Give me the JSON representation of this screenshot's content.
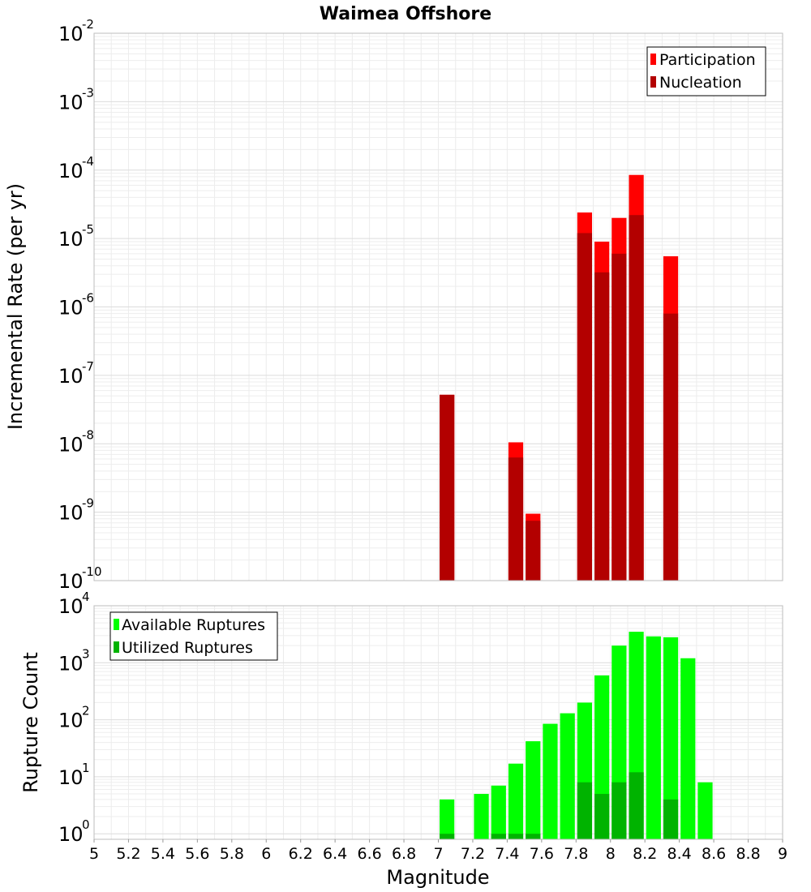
{
  "chart_data": {
    "type": "bar",
    "title": "Waimea Offshore",
    "xlabel": "Magnitude",
    "xlim": [
      5,
      9
    ],
    "x_ticks": [
      "5",
      "5.2",
      "5.4",
      "5.6",
      "5.8",
      "6",
      "6.2",
      "6.4",
      "6.6",
      "6.8",
      "7",
      "7.2",
      "7.4",
      "7.6",
      "7.8",
      "8",
      "8.2",
      "8.4",
      "8.6",
      "8.8",
      "9"
    ],
    "bin_width": 0.1,
    "panels": [
      {
        "name": "rate-panel",
        "ylabel": "Incremental Rate (per yr)",
        "yscale": "log",
        "ylim_exp": [
          -10,
          -2
        ],
        "y_tick_base": "10",
        "y_tick_exponents": [
          "-10",
          "-9",
          "-8",
          "-7",
          "-6",
          "-5",
          "-4",
          "-3",
          "-2"
        ],
        "legend_position": "top-right",
        "grid": true,
        "series": [
          {
            "name": "Participation",
            "color": "#ff0000",
            "x": [
              7.05,
              7.45,
              7.55,
              7.85,
              7.95,
              8.05,
              8.15,
              8.35
            ],
            "values": [
              5.2e-08,
              1.05e-08,
              9.5e-10,
              2.4e-05,
              9e-06,
              2e-05,
              8.5e-05,
              5.5e-06
            ]
          },
          {
            "name": "Nucleation",
            "color": "#b30000",
            "x": [
              7.05,
              7.45,
              7.55,
              7.85,
              7.95,
              8.05,
              8.15,
              8.35
            ],
            "values": [
              5.2e-08,
              6.3e-09,
              7.5e-10,
              1.2e-05,
              3.2e-06,
              6e-06,
              2.2e-05,
              8e-07
            ]
          }
        ]
      },
      {
        "name": "count-panel",
        "ylabel": "Rupture Count",
        "yscale": "log",
        "ylim": [
          0.8,
          10000
        ],
        "y_tick_base": "10",
        "y_tick_exponents": [
          "0",
          "1",
          "2",
          "3",
          "4"
        ],
        "legend_position": "top-left",
        "grid": true,
        "series": [
          {
            "name": "Available Ruptures",
            "color": "#00ff00",
            "x": [
              7.05,
              7.25,
              7.35,
              7.45,
              7.55,
              7.65,
              7.75,
              7.85,
              7.95,
              8.05,
              8.15,
              8.25,
              8.35,
              8.45,
              8.55
            ],
            "values": [
              4,
              5,
              7,
              17,
              42,
              85,
              130,
              200,
              600,
              2000,
              3500,
              2900,
              2800,
              1200,
              8
            ]
          },
          {
            "name": "Utilized Ruptures",
            "color": "#00b300",
            "x": [
              7.05,
              7.35,
              7.45,
              7.55,
              7.85,
              7.95,
              8.05,
              8.15,
              8.35
            ],
            "values": [
              1,
              1,
              1,
              1,
              8,
              5,
              8,
              12,
              4
            ]
          }
        ]
      }
    ]
  }
}
